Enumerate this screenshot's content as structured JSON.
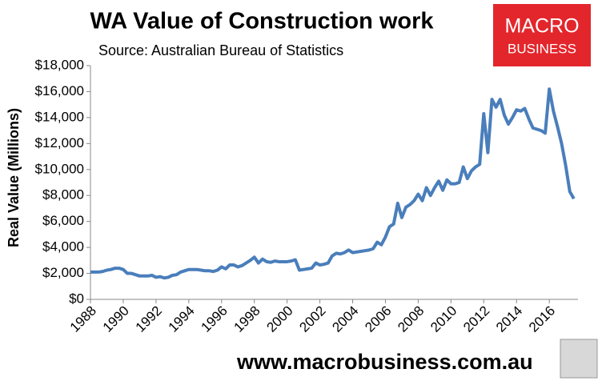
{
  "chart_data": {
    "type": "line",
    "title": "WA Value of Construction work",
    "subtitle": "Source: Australian Bureau of Statistics",
    "y_label": "Real Value (Millions)",
    "logo": [
      "MACRO",
      "BUSINESS"
    ],
    "footer": "www.macrobusiness.com.au",
    "x": [
      1988,
      1988.25,
      1988.5,
      1988.75,
      1989,
      1989.25,
      1989.5,
      1989.75,
      1990,
      1990.25,
      1990.5,
      1990.75,
      1991,
      1991.25,
      1991.5,
      1991.75,
      1992,
      1992.25,
      1992.5,
      1992.75,
      1993,
      1993.25,
      1993.5,
      1993.75,
      1994,
      1994.25,
      1994.5,
      1994.75,
      1995,
      1995.25,
      1995.5,
      1995.75,
      1996,
      1996.25,
      1996.5,
      1996.75,
      1997,
      1997.25,
      1997.5,
      1997.75,
      1998,
      1998.25,
      1998.5,
      1998.75,
      1999,
      1999.25,
      1999.5,
      1999.75,
      2000,
      2000.25,
      2000.5,
      2000.75,
      2001,
      2001.25,
      2001.5,
      2001.75,
      2002,
      2002.25,
      2002.5,
      2002.75,
      2003,
      2003.25,
      2003.5,
      2003.75,
      2004,
      2004.25,
      2004.5,
      2004.75,
      2005,
      2005.25,
      2005.5,
      2005.75,
      2006,
      2006.25,
      2006.5,
      2006.75,
      2007,
      2007.25,
      2007.5,
      2007.75,
      2008,
      2008.25,
      2008.5,
      2008.75,
      2009,
      2009.25,
      2009.5,
      2009.75,
      2010,
      2010.25,
      2010.5,
      2010.75,
      2011,
      2011.25,
      2011.5,
      2011.75,
      2012,
      2012.25,
      2012.5,
      2012.75,
      2013,
      2013.25,
      2013.5,
      2013.75,
      2014,
      2014.25,
      2014.5,
      2014.75,
      2015,
      2015.25,
      2015.5,
      2015.75,
      2016,
      2016.25,
      2016.5,
      2016.75,
      2017,
      2017.25,
      2017.5
    ],
    "series": [
      {
        "name": "WA",
        "color": "#4a7ebb",
        "values": [
          2100,
          2100,
          2100,
          2150,
          2250,
          2300,
          2400,
          2400,
          2300,
          2000,
          2000,
          1900,
          1800,
          1800,
          1800,
          1850,
          1700,
          1750,
          1650,
          1700,
          1850,
          1900,
          2100,
          2200,
          2300,
          2300,
          2300,
          2250,
          2200,
          2200,
          2150,
          2250,
          2500,
          2350,
          2650,
          2650,
          2500,
          2600,
          2800,
          3000,
          3250,
          2800,
          3100,
          2900,
          2850,
          2950,
          2900,
          2900,
          2900,
          2950,
          3050,
          2250,
          2300,
          2350,
          2400,
          2800,
          2650,
          2700,
          2800,
          3350,
          3550,
          3500,
          3600,
          3800,
          3600,
          3650,
          3700,
          3750,
          3800,
          3900,
          4400,
          4200,
          4800,
          5600,
          5800,
          7400,
          6300,
          7100,
          7300,
          7600,
          8100,
          7600,
          8600,
          8000,
          8600,
          9100,
          8400,
          9200,
          8900,
          8900,
          9000,
          10200,
          9300,
          9900,
          10200,
          10400,
          14300,
          11300,
          15400,
          14800,
          15400,
          14200,
          13500,
          14000,
          14600,
          14500,
          14700,
          13900,
          13200,
          13100,
          13000,
          12800,
          16200,
          14500,
          13300,
          12000,
          10300,
          8300,
          7750
        ]
      }
    ],
    "xlim": [
      1988,
      2017.75
    ],
    "xticks": [
      1988,
      1990,
      1992,
      1994,
      1996,
      1998,
      2000,
      2002,
      2004,
      2006,
      2008,
      2010,
      2012,
      2014,
      2016
    ],
    "ylim": [
      0,
      18000
    ],
    "yticks": [
      {
        "value": 0,
        "label": "$0"
      },
      {
        "value": 2000,
        "label": "$2,000"
      },
      {
        "value": 4000,
        "label": "$4,000"
      },
      {
        "value": 6000,
        "label": "$6,000"
      },
      {
        "value": 8000,
        "label": "$8,000"
      },
      {
        "value": 10000,
        "label": "$10,000"
      },
      {
        "value": 12000,
        "label": "$12,000"
      },
      {
        "value": 14000,
        "label": "$14,000"
      },
      {
        "value": 16000,
        "label": "$16,000"
      },
      {
        "value": 18000,
        "label": "$18,000"
      }
    ]
  }
}
